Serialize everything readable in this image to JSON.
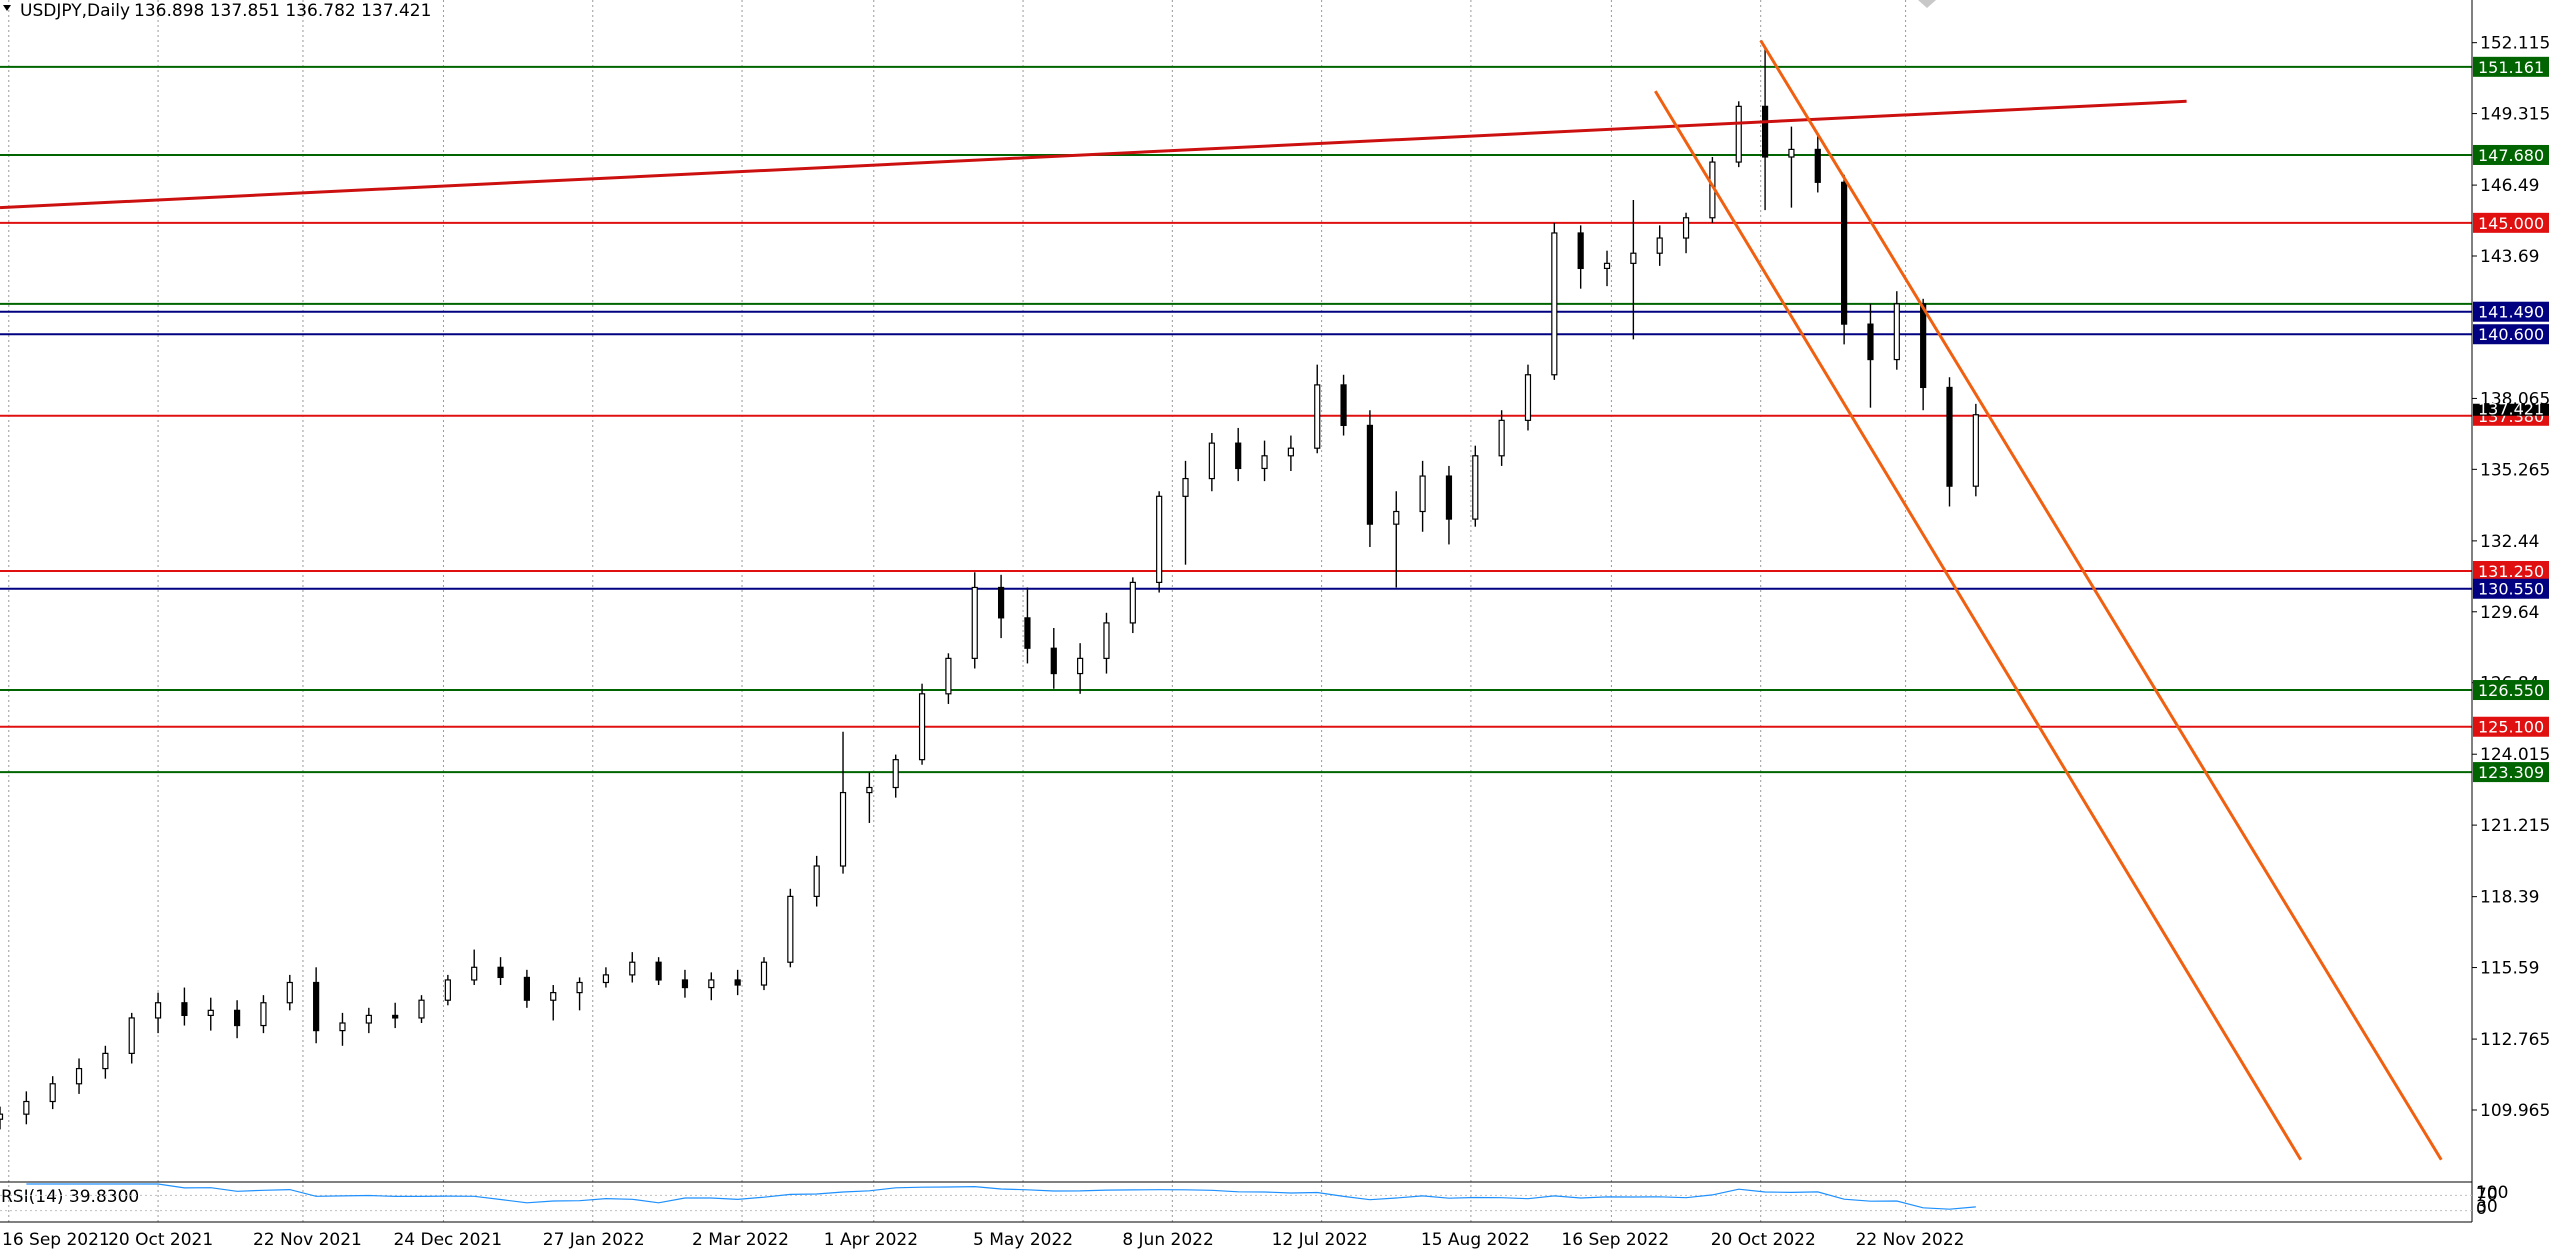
{
  "header": {
    "symbol": "USDJPY,Daily",
    "ohlc": "136.898 137.851 136.782 137.421"
  },
  "chart_data": {
    "type": "candlestick",
    "symbol": "USDJPY",
    "timeframe": "Daily",
    "last_bar": {
      "open": 136.898,
      "high": 137.851,
      "low": 136.782,
      "close": 137.421
    },
    "price_axis": {
      "range": [
        107.2,
        153.8
      ],
      "ticks": [
        152.115,
        149.315,
        146.49,
        143.69,
        138.065,
        135.265,
        132.44,
        129.64,
        126.84,
        124.015,
        121.215,
        118.39,
        115.59,
        112.765,
        109.965
      ]
    },
    "date_axis": {
      "labels": [
        "16 Sep 2021",
        "20 Oct 2021",
        "22 Nov 2021",
        "24 Dec 2021",
        "27 Jan 2022",
        "2 Mar 2022",
        "1 Apr 2022",
        "5 May 2022",
        "8 Jun 2022",
        "12 Jul 2022",
        "15 Aug 2022",
        "16 Sep 2022",
        "20 Oct 2022",
        "22 Nov 2022"
      ]
    },
    "grid": true,
    "horizontal_levels": [
      {
        "price": 151.161,
        "label": "151.161",
        "color": "#006400"
      },
      {
        "price": 147.68,
        "label": "147.680",
        "color": "#006400"
      },
      {
        "price": 145.0,
        "label": "145.000",
        "color": "#e01010"
      },
      {
        "price": 141.8,
        "label": "",
        "color": "#006400"
      },
      {
        "price": 141.49,
        "label": "141.490",
        "color": "#000080"
      },
      {
        "price": 140.6,
        "label": "140.600",
        "color": "#000080"
      },
      {
        "price": 137.38,
        "label": "137.380",
        "color": "#e01010"
      },
      {
        "price": 131.25,
        "label": "131.250",
        "color": "#e01010"
      },
      {
        "price": 130.55,
        "label": "130.550",
        "color": "#000080"
      },
      {
        "price": 126.55,
        "label": "126.550",
        "color": "#006400"
      },
      {
        "price": 125.1,
        "label": "125.100",
        "color": "#e01010"
      },
      {
        "price": 123.309,
        "label": "123.309",
        "color": "#006400"
      }
    ],
    "current_price": {
      "price": 137.421,
      "label": "137.421"
    },
    "trendlines": [
      {
        "color": "#cc1010",
        "from": {
          "date": "2021-09-14",
          "price": 145.6
        },
        "to": {
          "date": "2023-01-25",
          "price": 149.8
        }
      },
      {
        "color": "#f06010",
        "from": {
          "date": "2022-09-26",
          "price": 150.2
        },
        "to": {
          "date": "2023-02-20",
          "price": 108.0
        }
      },
      {
        "color": "#f06010",
        "from": {
          "date": "2022-10-20",
          "price": 152.2
        },
        "to": {
          "date": "2023-03-24",
          "price": 108.0
        }
      }
    ],
    "candles": [
      [
        "2021-09-14",
        109.6,
        110.1,
        109.2,
        109.8
      ],
      [
        "2021-09-20",
        109.8,
        110.7,
        109.4,
        110.3
      ],
      [
        "2021-09-26",
        110.3,
        111.3,
        110.0,
        111.0
      ],
      [
        "2021-10-02",
        111.0,
        112.0,
        110.6,
        111.6
      ],
      [
        "2021-10-08",
        111.6,
        112.5,
        111.2,
        112.2
      ],
      [
        "2021-10-14",
        112.2,
        113.8,
        111.8,
        113.6
      ],
      [
        "2021-10-20",
        113.6,
        114.6,
        113.0,
        114.2
      ],
      [
        "2021-10-26",
        114.2,
        114.8,
        113.3,
        113.7
      ],
      [
        "2021-11-01",
        113.7,
        114.4,
        113.1,
        113.9
      ],
      [
        "2021-11-07",
        113.9,
        114.3,
        112.8,
        113.3
      ],
      [
        "2021-11-13",
        113.3,
        114.5,
        113.0,
        114.2
      ],
      [
        "2021-11-19",
        114.2,
        115.3,
        113.9,
        115.0
      ],
      [
        "2021-11-25",
        115.0,
        115.6,
        112.6,
        113.1
      ],
      [
        "2021-12-01",
        113.1,
        113.8,
        112.5,
        113.4
      ],
      [
        "2021-12-07",
        113.4,
        114.0,
        113.0,
        113.7
      ],
      [
        "2021-12-13",
        113.7,
        114.2,
        113.2,
        113.6
      ],
      [
        "2021-12-19",
        113.6,
        114.5,
        113.4,
        114.3
      ],
      [
        "2021-12-25",
        114.3,
        115.3,
        114.1,
        115.1
      ],
      [
        "2021-12-31",
        115.1,
        116.3,
        114.9,
        115.6
      ],
      [
        "2022-01-06",
        115.6,
        116.0,
        114.9,
        115.2
      ],
      [
        "2022-01-12",
        115.2,
        115.5,
        114.0,
        114.3
      ],
      [
        "2022-01-18",
        114.3,
        114.9,
        113.5,
        114.6
      ],
      [
        "2022-01-24",
        114.6,
        115.2,
        113.9,
        115.0
      ],
      [
        "2022-01-30",
        115.0,
        115.6,
        114.8,
        115.3
      ],
      [
        "2022-02-05",
        115.3,
        116.2,
        115.0,
        115.8
      ],
      [
        "2022-02-11",
        115.8,
        116.0,
        114.9,
        115.1
      ],
      [
        "2022-02-17",
        115.1,
        115.5,
        114.4,
        114.8
      ],
      [
        "2022-02-23",
        114.8,
        115.4,
        114.3,
        115.1
      ],
      [
        "2022-03-01",
        115.1,
        115.5,
        114.5,
        114.9
      ],
      [
        "2022-03-07",
        114.9,
        116.0,
        114.7,
        115.8
      ],
      [
        "2022-03-13",
        115.8,
        118.7,
        115.6,
        118.4
      ],
      [
        "2022-03-19",
        118.4,
        120.0,
        118.0,
        119.6
      ],
      [
        "2022-03-25",
        119.6,
        124.9,
        119.3,
        122.5
      ],
      [
        "2022-03-31",
        122.5,
        123.3,
        121.3,
        122.7
      ],
      [
        "2022-04-06",
        122.7,
        124.0,
        122.3,
        123.8
      ],
      [
        "2022-04-12",
        123.8,
        126.8,
        123.6,
        126.4
      ],
      [
        "2022-04-18",
        126.4,
        128.0,
        126.0,
        127.8
      ],
      [
        "2022-04-24",
        127.8,
        131.2,
        127.4,
        130.6
      ],
      [
        "2022-04-30",
        130.6,
        131.1,
        128.6,
        129.4
      ],
      [
        "2022-05-06",
        129.4,
        130.6,
        127.6,
        128.2
      ],
      [
        "2022-05-12",
        128.2,
        129.0,
        126.6,
        127.2
      ],
      [
        "2022-05-18",
        127.2,
        128.4,
        126.4,
        127.8
      ],
      [
        "2022-05-24",
        127.8,
        129.6,
        127.2,
        129.2
      ],
      [
        "2022-05-30",
        129.2,
        131.0,
        128.8,
        130.8
      ],
      [
        "2022-06-05",
        130.8,
        134.4,
        130.4,
        134.2
      ],
      [
        "2022-06-11",
        134.2,
        135.6,
        131.5,
        134.9
      ],
      [
        "2022-06-17",
        134.9,
        136.7,
        134.4,
        136.3
      ],
      [
        "2022-06-23",
        136.3,
        136.9,
        134.8,
        135.3
      ],
      [
        "2022-06-29",
        135.3,
        136.4,
        134.8,
        135.8
      ],
      [
        "2022-07-05",
        135.8,
        136.6,
        135.2,
        136.1
      ],
      [
        "2022-07-11",
        136.1,
        139.4,
        135.9,
        138.6
      ],
      [
        "2022-07-17",
        138.6,
        139.0,
        136.6,
        137.0
      ],
      [
        "2022-07-23",
        137.0,
        137.6,
        132.2,
        133.1
      ],
      [
        "2022-07-29",
        133.1,
        134.4,
        130.6,
        133.6
      ],
      [
        "2022-08-04",
        133.6,
        135.6,
        132.8,
        135.0
      ],
      [
        "2022-08-10",
        135.0,
        135.4,
        132.3,
        133.3
      ],
      [
        "2022-08-16",
        133.3,
        136.2,
        133.0,
        135.8
      ],
      [
        "2022-08-22",
        135.8,
        137.6,
        135.4,
        137.2
      ],
      [
        "2022-08-28",
        137.2,
        139.4,
        136.8,
        139.0
      ],
      [
        "2022-09-03",
        139.0,
        145.0,
        138.8,
        144.6
      ],
      [
        "2022-09-09",
        144.6,
        144.9,
        142.4,
        143.2
      ],
      [
        "2022-09-15",
        143.2,
        143.9,
        142.5,
        143.4
      ],
      [
        "2022-09-21",
        143.4,
        145.9,
        140.4,
        143.8
      ],
      [
        "2022-09-27",
        143.8,
        144.9,
        143.3,
        144.4
      ],
      [
        "2022-10-03",
        144.4,
        145.4,
        143.8,
        145.2
      ],
      [
        "2022-10-09",
        145.2,
        147.6,
        145.0,
        147.4
      ],
      [
        "2022-10-15",
        147.4,
        149.8,
        147.2,
        149.6
      ],
      [
        "2022-10-21",
        149.6,
        151.9,
        145.5,
        147.6
      ],
      [
        "2022-10-27",
        147.6,
        148.8,
        145.6,
        147.9
      ],
      [
        "2022-11-02",
        147.9,
        148.5,
        146.2,
        146.6
      ],
      [
        "2022-11-08",
        146.6,
        146.9,
        140.2,
        141.0
      ],
      [
        "2022-11-14",
        141.0,
        141.8,
        137.7,
        139.6
      ],
      [
        "2022-11-20",
        139.6,
        142.3,
        139.2,
        141.8
      ],
      [
        "2022-11-26",
        141.8,
        142.0,
        137.6,
        138.5
      ],
      [
        "2022-12-02",
        138.5,
        138.9,
        133.8,
        134.6
      ],
      [
        "2022-12-08",
        134.6,
        137.851,
        134.2,
        137.421
      ]
    ],
    "rsi": {
      "label": "RSI(14) 39.8300",
      "period": 14,
      "value": 39.83,
      "scale_labels": [
        "100",
        "70",
        "30",
        "0"
      ],
      "color": "#1e90ff"
    }
  }
}
